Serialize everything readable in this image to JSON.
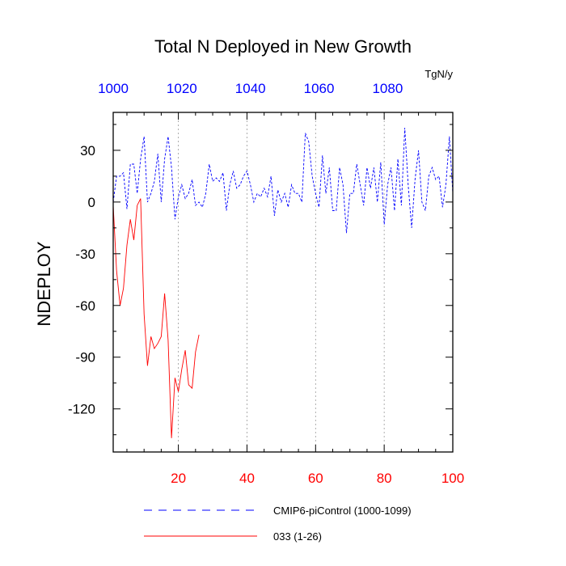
{
  "chart_data": {
    "type": "line",
    "title": "Total N Deployed in New Growth",
    "ylabel": "NDEPLOY",
    "units": "TgN/y",
    "xlim": [
      1,
      100
    ],
    "ylim": [
      -145,
      52
    ],
    "top_axis": {
      "ticks": [
        1000,
        1020,
        1040,
        1060,
        1080
      ],
      "color": "#0000ff",
      "offset": 999
    },
    "bottom_axis": {
      "ticks": [
        20,
        40,
        60,
        80,
        100
      ],
      "color": "#ff0000"
    },
    "y_ticks": [
      30,
      0,
      -30,
      -60,
      -90,
      -120
    ],
    "grid": "vertical-dotted-at-x-ticks",
    "legend_position": "bottom",
    "series": [
      {
        "name": "CMIP6-piControl (1000-1099)",
        "color": "#0000ff",
        "dash": "dashed",
        "x": [
          1,
          2,
          3,
          4,
          5,
          6,
          7,
          8,
          9,
          10,
          11,
          12,
          13,
          14,
          15,
          16,
          17,
          18,
          19,
          20,
          21,
          22,
          23,
          24,
          25,
          26,
          27,
          28,
          29,
          30,
          31,
          32,
          33,
          34,
          35,
          36,
          37,
          38,
          39,
          40,
          41,
          42,
          43,
          44,
          45,
          46,
          47,
          48,
          49,
          50,
          51,
          52,
          53,
          54,
          55,
          56,
          57,
          58,
          59,
          60,
          61,
          62,
          63,
          64,
          65,
          66,
          67,
          68,
          69,
          70,
          71,
          72,
          73,
          74,
          75,
          76,
          77,
          78,
          79,
          80,
          81,
          82,
          83,
          84,
          85,
          86,
          87,
          88,
          89,
          90,
          91,
          92,
          93,
          94,
          95,
          96,
          97,
          98,
          99,
          100
        ],
        "values": [
          0,
          15,
          15,
          17,
          -4,
          22,
          22,
          5,
          25,
          38,
          0,
          5,
          12,
          28,
          0,
          25,
          38,
          20,
          -10,
          3,
          10,
          2,
          5,
          13,
          -2,
          0,
          -3,
          5,
          22,
          12,
          14,
          12,
          17,
          -5,
          10,
          18,
          8,
          10,
          15,
          18,
          10,
          0,
          5,
          3,
          8,
          3,
          15,
          -8,
          7,
          0,
          5,
          -3,
          10,
          5,
          5,
          0,
          40,
          35,
          15,
          5,
          -3,
          27,
          5,
          20,
          -5,
          -5,
          20,
          10,
          -18,
          5,
          5,
          22,
          10,
          -2,
          20,
          8,
          20,
          0,
          23,
          -13,
          10,
          20,
          -5,
          25,
          -2,
          43,
          10,
          -15,
          13,
          30,
          0,
          -5,
          15,
          20,
          13,
          15,
          -3,
          10,
          38,
          5
        ]
      },
      {
        "name": "033 (1-26)",
        "color": "#ff0000",
        "dash": "solid",
        "x": [
          1,
          2,
          3,
          4,
          5,
          6,
          7,
          8,
          9,
          10,
          11,
          12,
          13,
          14,
          15,
          16,
          17,
          18,
          19,
          20,
          21,
          22,
          23,
          24,
          25,
          26
        ],
        "values": [
          -2,
          -40,
          -60,
          -50,
          -25,
          -10,
          -22,
          -2,
          2,
          -65,
          -95,
          -78,
          -85,
          -82,
          -78,
          -53,
          -80,
          -137,
          -102,
          -110,
          -97,
          -86,
          -106,
          -108,
          -87,
          -77
        ]
      }
    ]
  }
}
